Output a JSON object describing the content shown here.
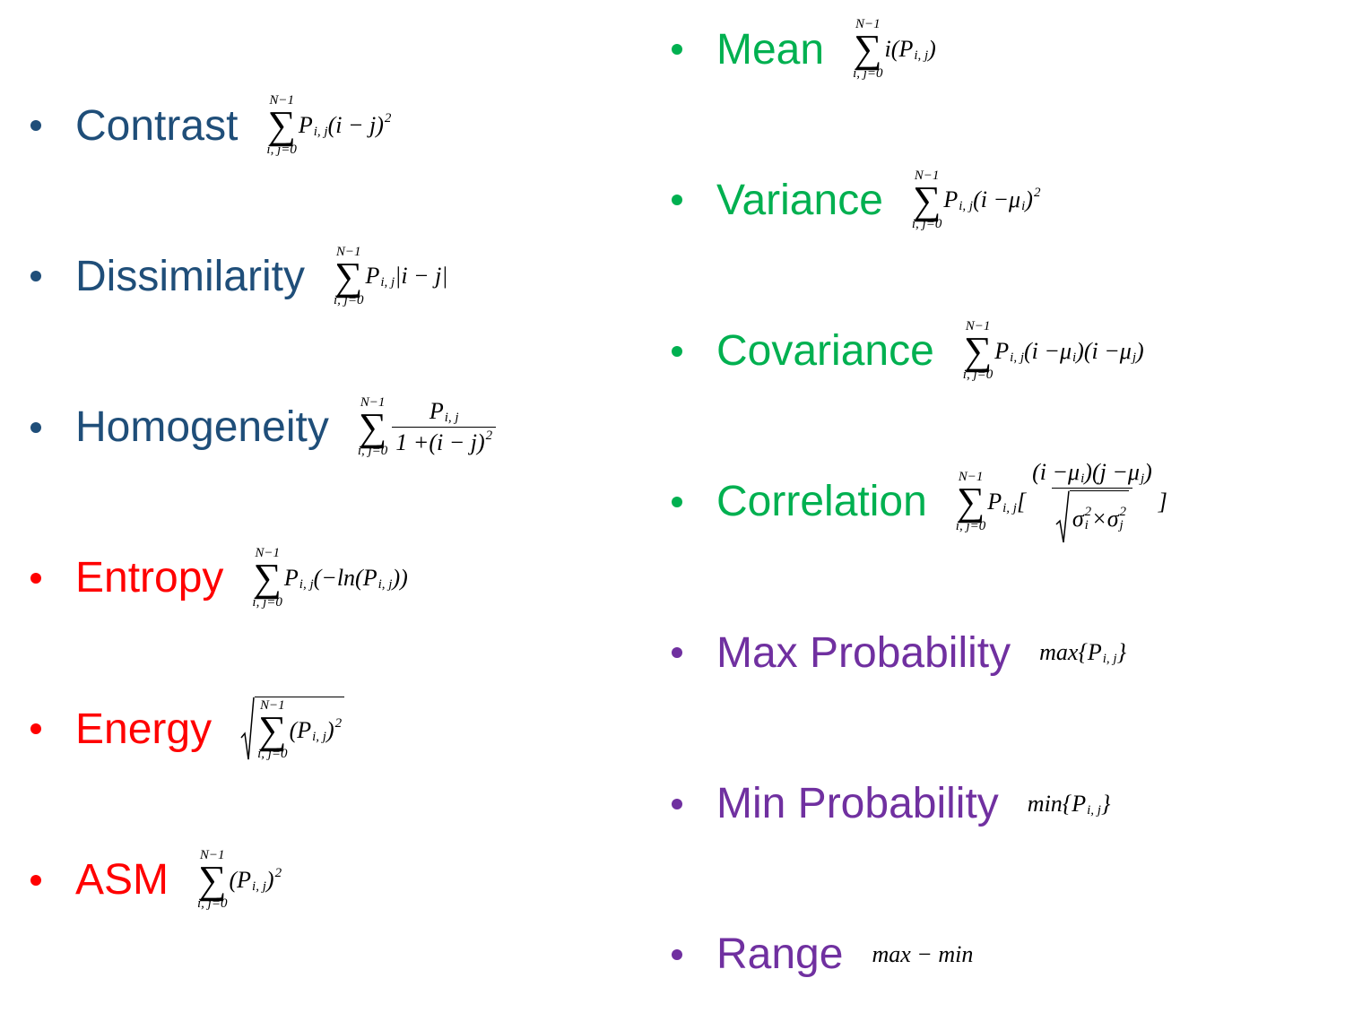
{
  "columns": [
    {
      "items": [
        {
          "label": "Contrast",
          "color": "#1f4e79",
          "formula": [
            {
              "op": "∑",
              "upper": "N−1",
              "lower": "i, j=0"
            },
            {
              "base": "P",
              "sub": "i, j"
            },
            {
              "base": "(i − j)",
              "sup": "2"
            }
          ]
        },
        {
          "label": "Dissimilarity",
          "color": "#1f4e79",
          "formula": [
            {
              "op": "∑",
              "upper": "N−1",
              "lower": "i, j=0"
            },
            {
              "base": "P",
              "sub": "i, j"
            },
            "|i − j|"
          ]
        },
        {
          "label": "Homogeneity",
          "color": "#1f4e79",
          "formula": [
            {
              "op": "∑",
              "upper": "N−1",
              "lower": "i, j=0"
            },
            {
              "num": [
                {
                  "base": "P",
                  "sub": "i, j"
                }
              ],
              "den": [
                "1 + ",
                {
                  "base": "(i − j)",
                  "sup": "2"
                }
              ]
            }
          ]
        },
        {
          "label": "Entropy",
          "color": "#ff0000",
          "formula": [
            {
              "op": "∑",
              "upper": "N−1",
              "lower": "i, j=0"
            },
            {
              "base": "P",
              "sub": "i, j"
            },
            "(−ln(",
            {
              "base": "P",
              "sub": "i, j"
            },
            "))"
          ]
        },
        {
          "label": "Energy",
          "color": "#ff0000",
          "formula": [
            {
              "sqrt": [
                {
                  "op": "∑",
                  "upper": "N−1",
                  "lower": "i, j=0"
                },
                "(",
                {
                  "base": "P",
                  "sub": "i, j"
                },
                {
                  "base": ")",
                  "sup": "2"
                }
              ]
            }
          ]
        },
        {
          "label": "ASM",
          "color": "#ff0000",
          "formula": [
            {
              "op": "∑",
              "upper": "N−1",
              "lower": "i, j=0"
            },
            "(",
            {
              "base": "P",
              "sub": "i, j"
            },
            {
              "base": ")",
              "sup": "2"
            }
          ]
        }
      ]
    },
    {
      "items": [
        {
          "label": "Mean",
          "color": "#00b050",
          "formula": [
            {
              "op": "∑",
              "upper": "N−1",
              "lower": "i, j=0"
            },
            "i(",
            {
              "base": "P",
              "sub": "i, j"
            },
            ")"
          ]
        },
        {
          "label": "Variance",
          "color": "#00b050",
          "formula": [
            {
              "op": "∑",
              "upper": "N−1",
              "lower": "i, j=0"
            },
            {
              "base": "P",
              "sub": "i, j"
            },
            "(i − ",
            {
              "base": "μ",
              "sub": "i"
            },
            {
              "base": ")",
              "sup": "2"
            }
          ]
        },
        {
          "label": "Covariance",
          "color": "#00b050",
          "formula": [
            {
              "op": "∑",
              "upper": "N−1",
              "lower": "i, j=0"
            },
            {
              "base": "P",
              "sub": "i, j"
            },
            "(i − ",
            {
              "base": "μ",
              "sub": "i"
            },
            ")(i − ",
            {
              "base": "μ",
              "sub": "j"
            },
            ")"
          ]
        },
        {
          "label": "Correlation",
          "color": "#00b050",
          "formula": [
            {
              "op": "∑",
              "upper": "N−1",
              "lower": "i, j=0"
            },
            {
              "base": "P",
              "sub": "i, j"
            },
            "[",
            {
              "num": [
                "(i − ",
                {
                  "base": "μ",
                  "sub": "i"
                },
                ")(j − ",
                {
                  "base": "μ",
                  "sub": "j"
                },
                ")"
              ],
              "den": [
                {
                  "sqrt": [
                    {
                      "base": "σ",
                      "sub": "i",
                      "sup": "2"
                    },
                    " × ",
                    {
                      "base": "σ",
                      "sub": "j",
                      "sup": "2"
                    }
                  ]
                }
              ]
            },
            "]"
          ]
        },
        {
          "label": "Max Probability",
          "color": "#7030a0",
          "formula": [
            "max{",
            {
              "base": "P",
              "sub": "i, j"
            },
            "}"
          ]
        },
        {
          "label": "Min Probability",
          "color": "#7030a0",
          "formula": [
            "min{",
            {
              "base": "P",
              "sub": "i, j"
            },
            "}"
          ]
        },
        {
          "label": "Range",
          "color": "#7030a0",
          "formula": [
            "max − min"
          ]
        }
      ]
    }
  ]
}
